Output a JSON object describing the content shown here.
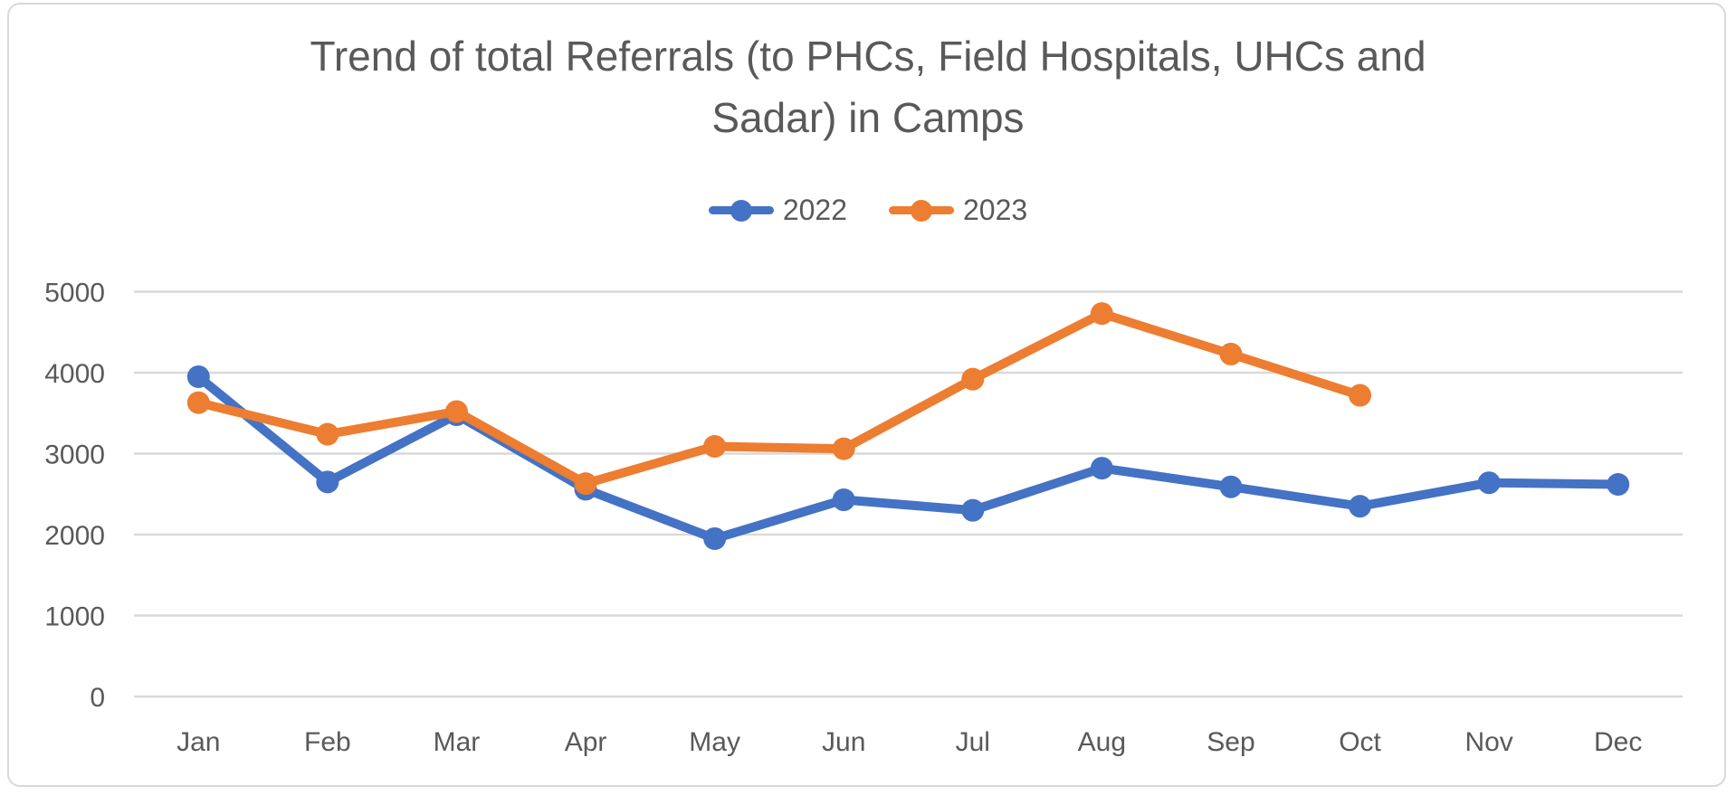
{
  "chart_data": {
    "type": "line",
    "title": "Trend of total Referrals (to PHCs, Field Hospitals, UHCs and Sadar) in Camps",
    "categories": [
      "Jan",
      "Feb",
      "Mar",
      "Apr",
      "May",
      "Jun",
      "Jul",
      "Aug",
      "Sep",
      "Oct",
      "Nov",
      "Dec"
    ],
    "series": [
      {
        "name": "2022",
        "color": "#4472C4",
        "values": [
          3950,
          2650,
          3480,
          2560,
          1950,
          2430,
          2300,
          2820,
          2590,
          2350,
          2640,
          2620
        ]
      },
      {
        "name": "2023",
        "color": "#ED7D31",
        "values": [
          3630,
          3240,
          3520,
          2630,
          3090,
          3060,
          3920,
          4730,
          4230,
          3720,
          null,
          null
        ]
      }
    ],
    "ylim": [
      0,
      5000
    ],
    "ytick_step": 1000,
    "ytick_labels": [
      "0",
      "1000",
      "2000",
      "3000",
      "4000",
      "5000"
    ],
    "legend_position": "top",
    "grid": "horizontal",
    "gridline_color": "#D9D9D9",
    "text_color": "#595959"
  }
}
